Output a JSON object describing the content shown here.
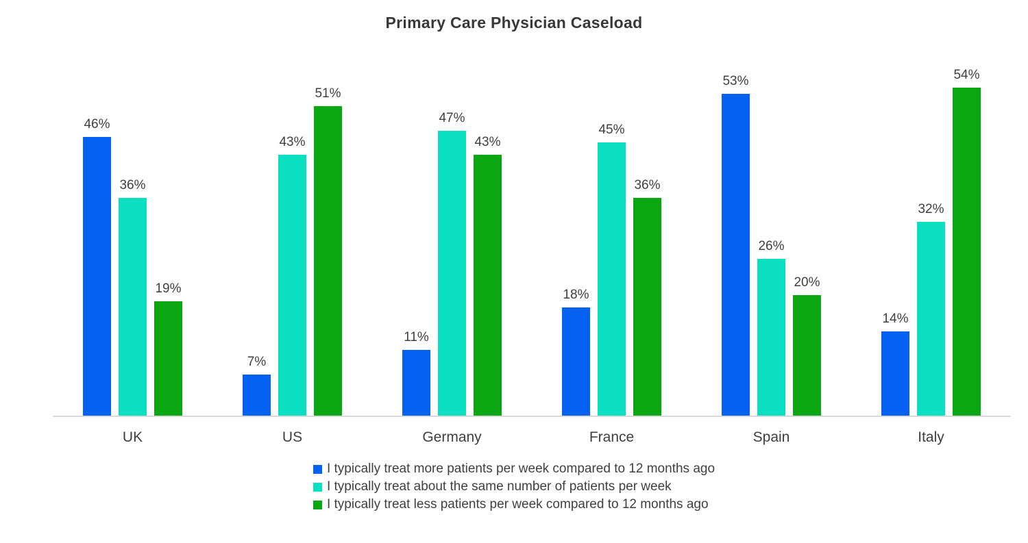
{
  "chart_data": {
    "type": "bar",
    "title": "Primary Care Physician Caseload",
    "categories": [
      "UK",
      "US",
      "Germany",
      "France",
      "Spain",
      "Italy"
    ],
    "series": [
      {
        "name": "I typically treat more patients per week compared to 12 months ago",
        "color": "#0561F2",
        "values": [
          46,
          7,
          11,
          18,
          53,
          14
        ]
      },
      {
        "name": "I typically treat about the same number of patients per week",
        "color": "#0ADFC2",
        "values": [
          36,
          43,
          47,
          45,
          26,
          32
        ]
      },
      {
        "name": "I typically treat less patients per week compared to 12 months ago",
        "color": "#0AA712",
        "values": [
          19,
          51,
          43,
          36,
          20,
          54
        ]
      }
    ],
    "value_suffix": "%",
    "ylim": [
      0,
      60
    ],
    "grid": false,
    "legend_position": "bottom",
    "xlabel": "",
    "ylabel": ""
  },
  "style": {
    "background": "#ffffff",
    "text_color": "#3f3f3f",
    "title_color": "#383838",
    "axis_line_color": "#d9d9d9"
  }
}
